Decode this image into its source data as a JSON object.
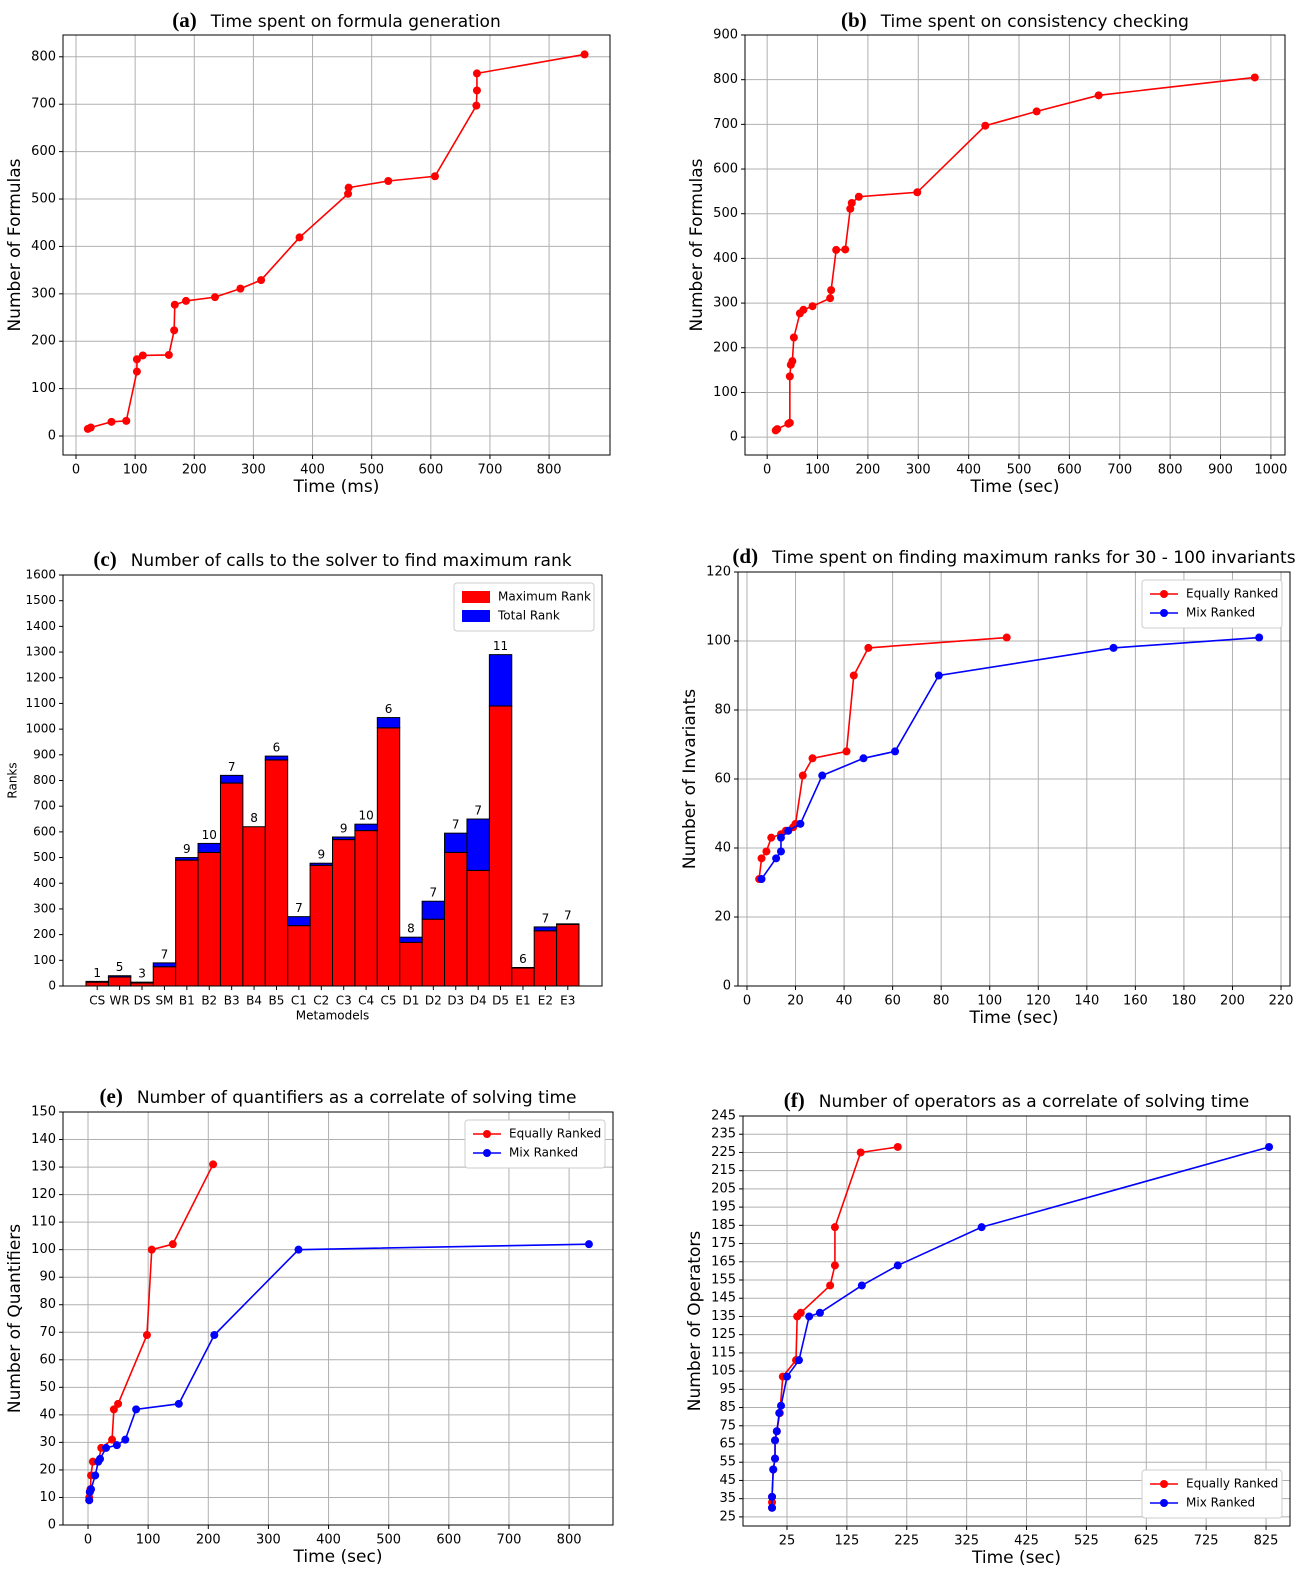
{
  "chart_data": [
    {
      "type": "line",
      "label": "(a)",
      "title": "Time spent on formula generation",
      "xlabel": "Time (ms)",
      "ylabel": "Number of Formulas",
      "color": "#ff0000",
      "x": [
        20,
        25,
        60,
        85,
        103,
        103,
        113,
        157,
        166,
        167,
        186,
        235,
        278,
        313,
        378,
        460,
        461,
        528,
        607,
        677,
        678,
        678,
        860
      ],
      "values": [
        15,
        18,
        30,
        32,
        136,
        162,
        170,
        171,
        223,
        277,
        285,
        293,
        311,
        329,
        419,
        511,
        524,
        538,
        548,
        697,
        729,
        765,
        805
      ],
      "xlim": [
        -22,
        903
      ],
      "ylim": [
        -40,
        846
      ],
      "xticks": [
        0,
        100,
        200,
        300,
        400,
        500,
        600,
        700,
        800
      ],
      "yticks": [
        0,
        100,
        200,
        300,
        400,
        500,
        600,
        700,
        800
      ],
      "grid": true
    },
    {
      "type": "line",
      "label": "(b)",
      "title": "Time spent on consistency checking",
      "xlabel": "Time (sec)",
      "ylabel": "Number of Formulas",
      "color": "#ff0000",
      "x": [
        17,
        20,
        42,
        45,
        45,
        47,
        50,
        53,
        65,
        72,
        90,
        125,
        127,
        137,
        155,
        165,
        168,
        182,
        298,
        433,
        535,
        658,
        968
      ],
      "values": [
        15,
        18,
        30,
        32,
        136,
        162,
        170,
        223,
        277,
        285,
        293,
        311,
        329,
        419,
        420,
        511,
        524,
        538,
        548,
        697,
        729,
        765,
        805
      ],
      "xlim": [
        -44,
        1028
      ],
      "ylim": [
        -40,
        900
      ],
      "xticks": [
        0,
        100,
        200,
        300,
        400,
        500,
        600,
        700,
        800,
        900,
        1000
      ],
      "yticks": [
        0,
        100,
        200,
        300,
        400,
        500,
        600,
        700,
        800,
        900
      ],
      "grid": true
    },
    {
      "type": "bar",
      "label": "(c)",
      "title": "Number of calls to the solver to find maximum rank",
      "xlabel": "Metamodels",
      "ylabel": "Ranks",
      "stacked": true,
      "legend": "upper right",
      "categories": [
        "CS",
        "WR",
        "DS",
        "SM",
        "B1",
        "B2",
        "B3",
        "B4",
        "B5",
        "C1",
        "C2",
        "C3",
        "C4",
        "C5",
        "D1",
        "D2",
        "D3",
        "D4",
        "D5",
        "E1",
        "E2",
        "E3"
      ],
      "series": [
        {
          "name": "Maximum Rank",
          "color": "#ff0000",
          "values": [
            15,
            35,
            12,
            75,
            490,
            520,
            790,
            620,
            880,
            235,
            470,
            570,
            605,
            1005,
            170,
            260,
            520,
            450,
            1090,
            70,
            215,
            240
          ]
        },
        {
          "name": "Total Rank",
          "color": "#0000ff",
          "values": [
            3,
            5,
            3,
            15,
            10,
            35,
            30,
            0,
            15,
            35,
            8,
            10,
            25,
            40,
            20,
            70,
            75,
            200,
            200,
            2,
            15,
            2
          ]
        }
      ],
      "bar_labels": [
        1,
        5,
        3,
        7,
        9,
        10,
        7,
        8,
        6,
        7,
        9,
        9,
        10,
        6,
        8,
        7,
        7,
        7,
        11,
        6,
        7,
        7
      ],
      "ylim": [
        0,
        1600
      ],
      "yticks": [
        0,
        100,
        200,
        300,
        400,
        500,
        600,
        700,
        800,
        900,
        1000,
        1100,
        1200,
        1300,
        1400,
        1500,
        1600
      ],
      "grid": false
    },
    {
      "type": "line",
      "label": "(d)",
      "title": "Time spent on finding maximum ranks for 30 - 100 invariants",
      "xlabel": "Time (sec)",
      "ylabel": "Number of Invariants",
      "legend": "upper right",
      "series": [
        {
          "name": "Equally Ranked",
          "color": "#ff0000",
          "x": [
            5,
            6,
            8,
            10,
            14,
            16,
            19,
            20,
            23,
            27,
            41,
            44,
            50,
            107
          ],
          "values": [
            31,
            37,
            39,
            43,
            44,
            45,
            46,
            47,
            61,
            66,
            68,
            90,
            98,
            101
          ]
        },
        {
          "name": "Mix Ranked",
          "color": "#0000ff",
          "x": [
            6,
            12,
            14,
            14,
            17,
            22,
            31,
            48,
            61,
            79,
            151,
            211
          ],
          "values": [
            31,
            37,
            39,
            43,
            45,
            47,
            61,
            66,
            68,
            90,
            98,
            101
          ]
        }
      ],
      "xlim": [
        -3.7,
        223.7
      ],
      "ylim": [
        0,
        120
      ],
      "xticks": [
        0,
        20,
        40,
        60,
        80,
        100,
        120,
        140,
        160,
        180,
        200,
        220
      ],
      "yticks": [
        0,
        20,
        40,
        60,
        80,
        100,
        120
      ],
      "grid": true
    },
    {
      "type": "line",
      "label": "(e)",
      "title": "Number of quantifiers as a correlate of solving time",
      "xlabel": "Time (sec)",
      "ylabel": "Number of Quantifiers",
      "legend": "upper right",
      "series": [
        {
          "name": "Equally Ranked",
          "color": "#ff0000",
          "x": [
            2,
            2,
            3,
            4,
            5,
            8,
            17,
            22,
            40,
            43,
            50,
            98,
            106,
            141,
            208
          ],
          "values": [
            9,
            10,
            12,
            13,
            18,
            23,
            23,
            28,
            31,
            42,
            44,
            69,
            100,
            102,
            131
          ]
        },
        {
          "name": "Mix Ranked",
          "color": "#0000ff",
          "x": [
            2,
            3,
            5,
            12,
            17,
            20,
            30,
            48,
            62,
            80,
            151,
            210,
            350,
            833
          ],
          "values": [
            9,
            12,
            13,
            18,
            23,
            24,
            28,
            29,
            31,
            42,
            44,
            69,
            100,
            102
          ]
        }
      ],
      "xlim": [
        -41.6,
        873
      ],
      "ylim": [
        0,
        150
      ],
      "xticks": [
        0,
        100,
        200,
        300,
        400,
        500,
        600,
        700,
        800
      ],
      "yticks": [
        0,
        10,
        20,
        30,
        40,
        50,
        60,
        70,
        80,
        90,
        100,
        110,
        120,
        130,
        140,
        150
      ],
      "grid": true
    },
    {
      "type": "line",
      "label": "(f)",
      "title": "Number of operators as a correlate of solving time",
      "xlabel": "Time (sec)",
      "ylabel": "Number of Operators",
      "legend": "lower right",
      "series": [
        {
          "name": "Equally Ranked",
          "color": "#ff0000",
          "x": [
            0,
            0,
            0,
            2,
            5,
            5,
            8,
            13,
            18,
            40,
            42,
            48,
            97,
            105,
            105,
            148,
            210
          ],
          "values": [
            30,
            33,
            36,
            51,
            57,
            67,
            72,
            82,
            102,
            111,
            135,
            137,
            152,
            163,
            184,
            225,
            228
          ]
        },
        {
          "name": "Mix Ranked",
          "color": "#0000ff",
          "x": [
            0,
            0,
            2,
            5,
            5,
            8,
            12,
            15,
            25,
            45,
            62,
            80,
            150,
            210,
            350,
            830
          ],
          "values": [
            30,
            36,
            51,
            57,
            67,
            72,
            82,
            86,
            102,
            111,
            135,
            137,
            152,
            163,
            184,
            228
          ]
        }
      ],
      "xlim": [
        -48.5,
        865
      ],
      "ylim": [
        20,
        245
      ],
      "xticks": [
        25,
        125,
        225,
        325,
        425,
        525,
        625,
        725,
        825
      ],
      "yticks": [
        25,
        35,
        45,
        55,
        65,
        75,
        85,
        95,
        105,
        115,
        125,
        135,
        145,
        155,
        165,
        175,
        185,
        195,
        205,
        215,
        225,
        235,
        245
      ],
      "grid": true
    }
  ]
}
